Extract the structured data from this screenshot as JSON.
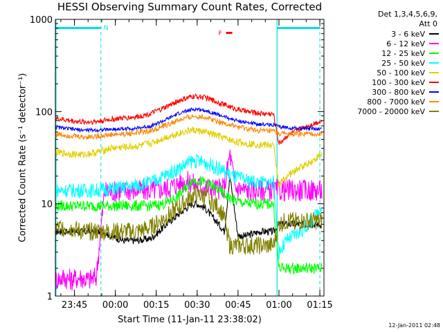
{
  "chart_data": {
    "type": "line",
    "title": "HESSI Observing Summary Count Rates, Corrected",
    "xlabel": "Start Time (11-Jan-11 23:38:02)",
    "ylabel": "Corrected Count Rate (s⁻¹ detector⁻¹)",
    "x_scale": "linear (minutes relative to 23:38:02)",
    "y_scale": "log",
    "xlim": [
      "23:38:02",
      "01:16:30"
    ],
    "ylim": [
      1,
      1000
    ],
    "grid": false,
    "legend_placement": "right",
    "x_ticks": [
      {
        "label": "23:45",
        "t": 7
      },
      {
        "label": "00:00",
        "t": 22
      },
      {
        "label": "00:15",
        "t": 37
      },
      {
        "label": "00:30",
        "t": 52
      },
      {
        "label": "00:45",
        "t": 67
      },
      {
        "label": "01:00",
        "t": 82
      },
      {
        "label": "01:15",
        "t": 97
      }
    ],
    "y_ticks": [
      {
        "label": "1",
        "value": 1
      },
      {
        "label": "10",
        "value": 10
      },
      {
        "label": "100",
        "value": 100
      },
      {
        "label": "1000",
        "value": 1000
      }
    ],
    "legend_header": [
      "Det 1,3,4,5,6,9,",
      "Att 0"
    ],
    "annotations": [
      {
        "text": "N",
        "color": "#00e0e0"
      },
      {
        "text": "F",
        "color": "#ff0000"
      }
    ],
    "series": [
      {
        "name": "3 - 6 keV",
        "color": "#000000",
        "x": [
          0,
          5,
          10,
          15,
          18,
          20,
          25,
          30,
          35,
          38,
          42,
          47,
          50,
          52,
          55,
          57,
          60,
          62,
          64,
          67,
          70,
          75,
          80,
          82,
          85,
          90,
          95,
          98
        ],
        "y": [
          5,
          5,
          5,
          5,
          5,
          4.5,
          4,
          4,
          4.2,
          5,
          6.5,
          8.5,
          10,
          10,
          9,
          7.5,
          6,
          5,
          20,
          4.5,
          4.5,
          5,
          5,
          6,
          6,
          6,
          6,
          6
        ]
      },
      {
        "name": "6 - 12 keV",
        "color": "#ff00ff",
        "x": [
          0,
          3,
          6,
          9,
          12,
          15,
          18,
          20,
          25,
          30,
          35,
          40,
          47,
          50,
          52,
          55,
          60,
          62,
          64,
          66,
          70,
          75,
          80,
          82
        ],
        "y": [
          1.5,
          1.6,
          1.5,
          1.6,
          1.5,
          1.6,
          13.5,
          13.5,
          14,
          14,
          14,
          14.5,
          17.5,
          17,
          16,
          15,
          14.5,
          15,
          35,
          15,
          14,
          14,
          14,
          14
        ]
      },
      {
        "name": "12 - 25 keV",
        "color": "#00ff00",
        "x": [
          0,
          18,
          20,
          25,
          30,
          35,
          40,
          45,
          50,
          52,
          55,
          60,
          65,
          70,
          75,
          80,
          82,
          85,
          90,
          95,
          98
        ],
        "y": [
          9.5,
          9.5,
          9.5,
          9.5,
          9.5,
          9.5,
          10,
          12,
          18,
          18,
          17,
          14,
          11,
          10,
          10,
          10,
          2,
          2,
          2,
          2,
          2
        ]
      },
      {
        "name": "25 - 50 keV",
        "color": "#00ffff",
        "x": [
          0,
          5,
          10,
          15,
          20,
          25,
          30,
          35,
          40,
          45,
          50,
          52,
          55,
          60,
          65,
          70,
          75,
          80,
          82,
          85,
          90,
          95,
          98
        ],
        "y": [
          14,
          14,
          14,
          14,
          14.5,
          15,
          16,
          17,
          20,
          24,
          29,
          29,
          28,
          24,
          20,
          18,
          17,
          17,
          3,
          4,
          5,
          7,
          10
        ]
      },
      {
        "name": "50 - 100 keV",
        "color": "#e0d000",
        "x": [
          0,
          5,
          10,
          15,
          20,
          25,
          30,
          35,
          40,
          45,
          50,
          52,
          55,
          60,
          65,
          70,
          75,
          80,
          82,
          85,
          90,
          95,
          98
        ],
        "y": [
          36,
          35,
          34,
          36,
          40,
          41,
          42,
          45,
          52,
          58,
          63,
          62,
          60,
          54,
          48,
          45,
          44,
          43,
          16,
          20,
          25,
          30,
          35
        ]
      },
      {
        "name": "100 - 300 keV",
        "color": "#ff0000",
        "x": [
          0,
          5,
          10,
          15,
          20,
          25,
          30,
          35,
          40,
          45,
          50,
          52,
          55,
          60,
          65,
          70,
          75,
          80,
          82,
          85,
          90,
          95,
          98
        ],
        "y": [
          84,
          80,
          77,
          78,
          82,
          85,
          88,
          95,
          110,
          130,
          145,
          146,
          142,
          125,
          110,
          100,
          96,
          94,
          45,
          55,
          65,
          75,
          80
        ]
      },
      {
        "name": "300 - 800 keV",
        "color": "#0000ff",
        "x": [
          0,
          5,
          10,
          15,
          20,
          25,
          30,
          35,
          40,
          45,
          50,
          52,
          55,
          60,
          65,
          70,
          75,
          80,
          82,
          85,
          90,
          95,
          98
        ],
        "y": [
          68,
          65,
          63,
          63,
          64,
          65,
          66,
          70,
          80,
          95,
          105,
          106,
          103,
          92,
          82,
          76,
          73,
          72,
          68,
          67,
          66,
          65,
          65
        ]
      },
      {
        "name": "800 - 7000 keV",
        "color": "#ff8800",
        "x": [
          0,
          5,
          10,
          15,
          20,
          25,
          30,
          35,
          40,
          45,
          50,
          52,
          55,
          60,
          65,
          70,
          75,
          80,
          82,
          85,
          90,
          95,
          98
        ],
        "y": [
          57,
          55,
          53,
          54,
          56,
          57,
          59,
          62,
          70,
          80,
          88,
          89,
          87,
          78,
          70,
          65,
          62,
          61,
          58,
          57,
          57,
          57,
          57
        ]
      },
      {
        "name": "7000 - 20000 keV",
        "color": "#808000",
        "x": [
          0,
          5,
          10,
          15,
          20,
          25,
          30,
          35,
          40,
          45,
          50,
          52,
          55,
          60,
          62,
          64,
          66,
          70,
          75,
          80,
          82,
          85,
          90,
          95,
          98
        ],
        "y": [
          5.5,
          5.5,
          5,
          5,
          5,
          5,
          5,
          5.5,
          7,
          9,
          12,
          12.5,
          12,
          9,
          7,
          3.5,
          3.5,
          3.5,
          3.5,
          3.5,
          6,
          6.5,
          6.5,
          6.5,
          6.5
        ]
      }
    ]
  },
  "footer_timestamp": "12-Jan-2011 02:48"
}
